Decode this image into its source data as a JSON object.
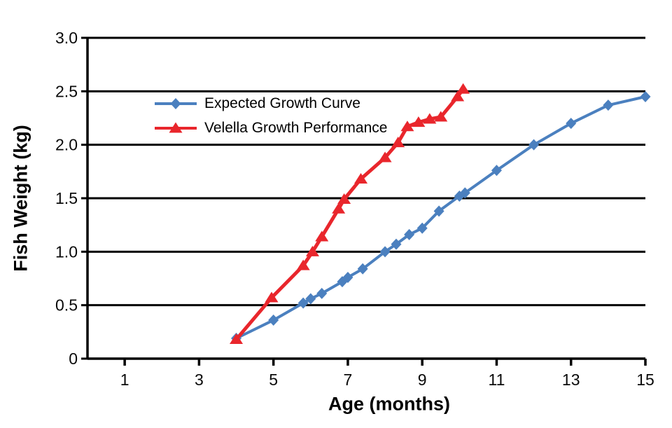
{
  "chart_data": {
    "type": "line",
    "title": "",
    "xlabel": "Age (months)",
    "ylabel": "Fish Weight (kg)",
    "xlim": [
      0,
      15
    ],
    "ylim": [
      0,
      3.0
    ],
    "xticks": [
      1,
      3,
      5,
      7,
      9,
      11,
      13,
      15
    ],
    "yticks": [
      0,
      0.5,
      1.0,
      1.5,
      2.0,
      2.5,
      3.0
    ],
    "ytick_labels": [
      "0",
      "0.5",
      "1.0",
      "1.5",
      "2.0",
      "2.5",
      "3.0"
    ],
    "grid": "horizontal-only",
    "legend_position": "upper-left-inside",
    "axis_color": "#000000",
    "background": "#ffffff",
    "series": [
      {
        "name": "Expected Growth Curve",
        "color": "#4b80bf",
        "marker": "diamond",
        "points": [
          [
            4.0,
            0.19
          ],
          [
            5.0,
            0.36
          ],
          [
            5.8,
            0.52
          ],
          [
            6.0,
            0.56
          ],
          [
            6.3,
            0.61
          ],
          [
            6.85,
            0.72
          ],
          [
            7.0,
            0.76
          ],
          [
            7.4,
            0.84
          ],
          [
            8.0,
            1.0
          ],
          [
            8.3,
            1.07
          ],
          [
            8.65,
            1.16
          ],
          [
            9.0,
            1.22
          ],
          [
            9.45,
            1.38
          ],
          [
            10.0,
            1.52
          ],
          [
            10.15,
            1.55
          ],
          [
            11.0,
            1.76
          ],
          [
            12.0,
            2.0
          ],
          [
            13.0,
            2.2
          ],
          [
            14.0,
            2.37
          ],
          [
            15.0,
            2.45
          ]
        ]
      },
      {
        "name": "Velella Growth Performance",
        "color": "#e9262c",
        "marker": "triangle",
        "points": [
          [
            4.0,
            0.18
          ],
          [
            4.95,
            0.57
          ],
          [
            5.8,
            0.87
          ],
          [
            6.05,
            1.0
          ],
          [
            6.3,
            1.14
          ],
          [
            6.75,
            1.4
          ],
          [
            6.9,
            1.49
          ],
          [
            7.35,
            1.68
          ],
          [
            8.0,
            1.88
          ],
          [
            8.35,
            2.02
          ],
          [
            8.6,
            2.17
          ],
          [
            8.9,
            2.21
          ],
          [
            9.2,
            2.24
          ],
          [
            9.5,
            2.26
          ],
          [
            9.95,
            2.45
          ],
          [
            10.1,
            2.52
          ]
        ]
      }
    ]
  }
}
